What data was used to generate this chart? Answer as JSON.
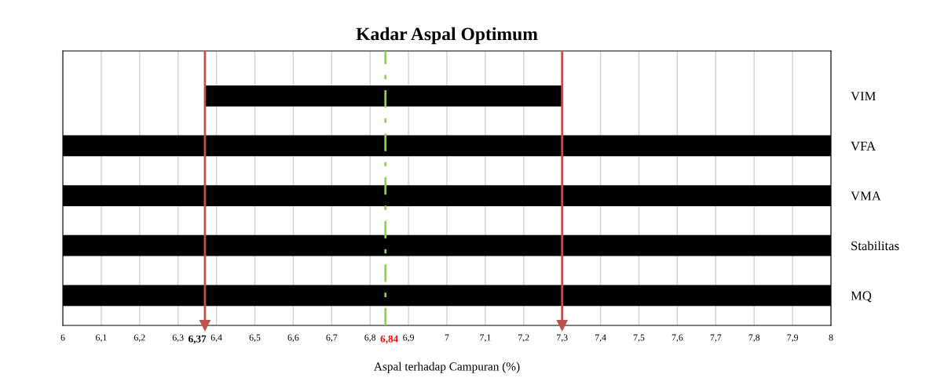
{
  "chart_data": {
    "type": "bar",
    "orientation": "horizontal",
    "title": "Kadar Aspal Optimum",
    "xlabel": "Aspal terhadap Campuran (%)",
    "categories": [
      "VIM",
      "VFA",
      "VMA",
      "Stabilitas",
      "MQ"
    ],
    "series": [
      {
        "color": "#000000",
        "values": [
          0.93,
          2,
          2,
          2,
          2
        ],
        "base": [
          6.37,
          6,
          6,
          6,
          6
        ]
      }
    ],
    "xlim": [
      6,
      8
    ],
    "xticks": [
      {
        "value": 6,
        "label": "6"
      },
      {
        "value": 6.1,
        "label": "6,1"
      },
      {
        "value": 6.2,
        "label": "6,2"
      },
      {
        "value": 6.3,
        "label": "6,3"
      },
      {
        "value": 6.4,
        "label": "6,4"
      },
      {
        "value": 6.5,
        "label": "6,5"
      },
      {
        "value": 6.6,
        "label": "6,6"
      },
      {
        "value": 6.7,
        "label": "6,7"
      },
      {
        "value": 6.8,
        "label": "6,8"
      },
      {
        "value": 6.9,
        "label": "6,9"
      },
      {
        "value": 7,
        "label": "7"
      },
      {
        "value": 7.1,
        "label": "7,1"
      },
      {
        "value": 7.2,
        "label": "7,2"
      },
      {
        "value": 7.3,
        "label": "7,3"
      },
      {
        "value": 7.4,
        "label": "7,4"
      },
      {
        "value": 7.5,
        "label": "7,5"
      },
      {
        "value": 7.6,
        "label": "7,6"
      },
      {
        "value": 7.7,
        "label": "7,7"
      },
      {
        "value": 7.8,
        "label": "7,8"
      },
      {
        "value": 7.9,
        "label": "7,9"
      },
      {
        "value": 8,
        "label": "8"
      }
    ],
    "ref_lines": [
      {
        "axis": "x",
        "value": 6.37,
        "label": "6,37",
        "color": "#c0504d",
        "line_style": "solid"
      },
      {
        "axis": "x",
        "value": 7.3,
        "color": "#c0504d",
        "line_style": "solid"
      },
      {
        "axis": "x",
        "value": 6.84,
        "label": "6,84",
        "color": "#92d050",
        "line_style": "dashed"
      }
    ],
    "grid": "x",
    "legend": false
  }
}
